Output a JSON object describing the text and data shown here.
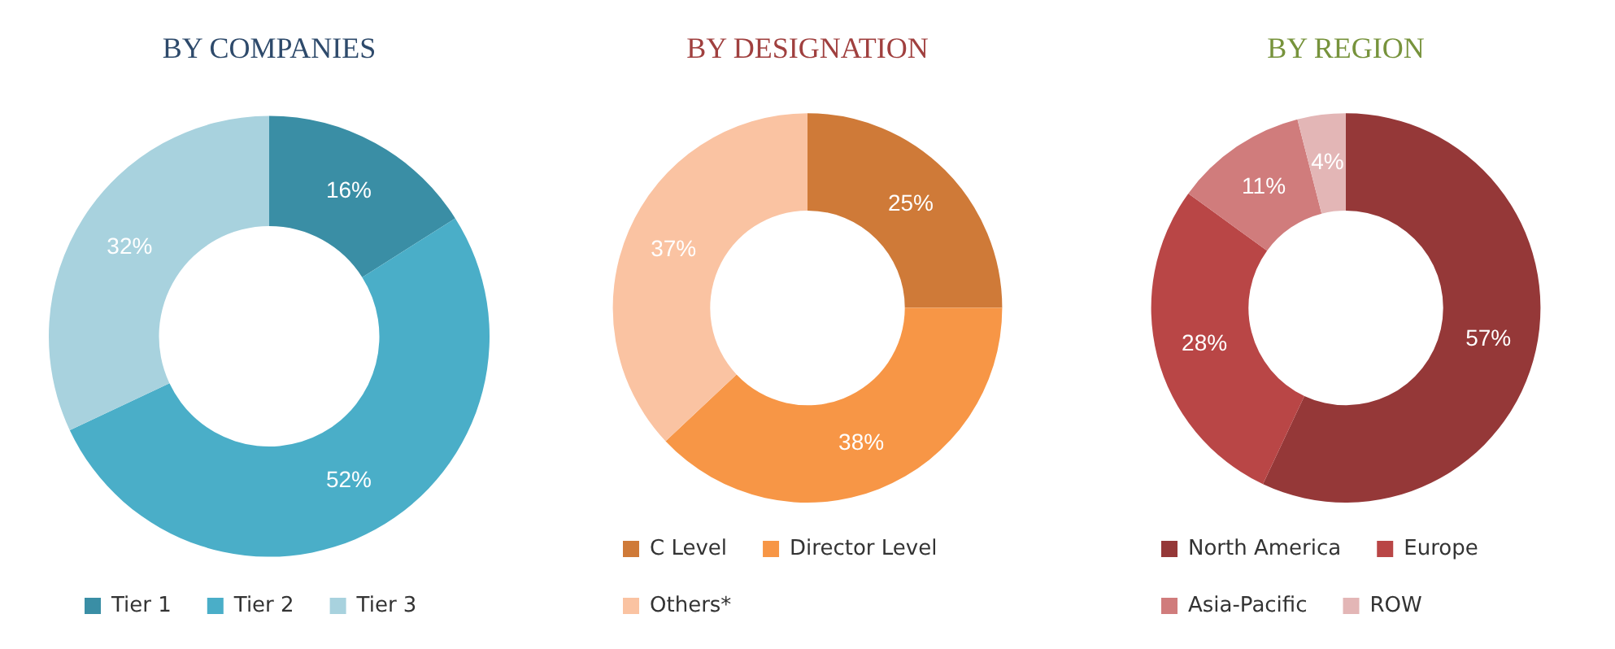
{
  "chart_data": [
    {
      "type": "donut",
      "title": "BY COMPANIES",
      "categories": [
        "Tier 1",
        "Tier 2",
        "Tier 3"
      ],
      "values": [
        16,
        52,
        32
      ],
      "colors": [
        "#3a8ea5",
        "#4aaec8",
        "#a8d2de"
      ],
      "value_labels": [
        "16%",
        "52%",
        "32%"
      ],
      "legend": "bottom"
    },
    {
      "type": "donut",
      "title": "BY DESIGNATION",
      "categories": [
        "C Level",
        "Director Level",
        "Others*"
      ],
      "values": [
        25,
        38,
        37
      ],
      "colors": [
        "#cf7a38",
        "#f79646",
        "#fac3a2"
      ],
      "value_labels": [
        "25%",
        "38%",
        "37%"
      ],
      "legend": "bottom"
    },
    {
      "type": "donut",
      "title": "BY REGION",
      "categories": [
        "North America",
        "Europe",
        "Asia-Pacific",
        "ROW"
      ],
      "values": [
        57,
        28,
        11,
        4
      ],
      "colors": [
        "#953838",
        "#b94646",
        "#d07c7c",
        "#e3b6b6"
      ],
      "value_labels": [
        "57%",
        "28%",
        "11%",
        "4%"
      ],
      "legend": "bottom"
    }
  ]
}
